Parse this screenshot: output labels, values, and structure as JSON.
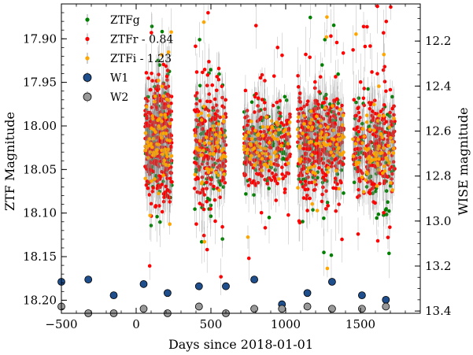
{
  "chart_data": {
    "type": "scatter",
    "title": "",
    "xlabel": "Days since 2018-01-01",
    "ylabel_left": "ZTF Magnitude",
    "ylabel_right": "WISE magnitude",
    "xlim": [
      -500,
      1900
    ],
    "ylim_left": [
      18.215,
      17.86
    ],
    "ylim_right": [
      13.41,
      12.035
    ],
    "grid": false,
    "legend_position": "top-left",
    "x_ticks": [
      -500,
      0,
      500,
      1000,
      1500
    ],
    "y_ticks_left": [
      17.9,
      17.95,
      18.0,
      18.05,
      18.1,
      18.15,
      18.2
    ],
    "y_ticks_right": [
      12.2,
      12.4,
      12.6,
      12.8,
      13.0,
      13.2,
      13.4
    ],
    "x_tick_labels": [
      "−500",
      "0",
      "500",
      "1000",
      "1500"
    ],
    "y_tick_labels_left": [
      "17.90",
      "17.95",
      "18.00",
      "18.05",
      "18.10",
      "18.15",
      "18.20"
    ],
    "y_tick_labels_right": [
      "12.2",
      "12.4",
      "12.6",
      "12.8",
      "13.0",
      "13.2",
      "13.4"
    ],
    "seasons": [
      {
        "start": 60,
        "end": 240,
        "center": 18.015,
        "spread": 0.035
      },
      {
        "start": 390,
        "end": 600,
        "center": 18.025,
        "spread": 0.035
      },
      {
        "start": 720,
        "end": 1030,
        "center": 18.02,
        "spread": 0.025
      },
      {
        "start": 1080,
        "end": 1390,
        "center": 18.02,
        "spread": 0.03
      },
      {
        "start": 1450,
        "end": 1730,
        "center": 18.025,
        "spread": 0.03
      }
    ],
    "series": [
      {
        "name": "ZTFg",
        "color": "#008000",
        "marker": "dot",
        "axis": "left",
        "points_per_season": [
          110,
          90,
          90,
          110,
          100
        ]
      },
      {
        "name": "ZTFr - 0.84",
        "color": "#ff0000",
        "marker": "dot",
        "axis": "left",
        "points_per_season": [
          320,
          200,
          220,
          320,
          230
        ]
      },
      {
        "name": "ZTFi - 1.23",
        "color": "#ffa500",
        "marker": "dot",
        "axis": "left",
        "points_per_season": [
          80,
          60,
          70,
          80,
          70
        ]
      },
      {
        "name": "W1",
        "color": "#1f4e8c",
        "marker": "circle",
        "axis": "right",
        "x": [
          -500,
          -320,
          -150,
          50,
          210,
          420,
          600,
          790,
          975,
          1145,
          1310,
          1510,
          1670
        ],
        "y": [
          13.27,
          13.26,
          13.33,
          13.28,
          13.32,
          13.29,
          13.29,
          13.26,
          13.37,
          13.32,
          13.27,
          13.33,
          13.35
        ]
      },
      {
        "name": "W2",
        "color": "#999999",
        "marker": "circle",
        "axis": "right",
        "x": [
          -500,
          -320,
          -150,
          50,
          210,
          420,
          600,
          790,
          975,
          1145,
          1310,
          1510,
          1670
        ],
        "y": [
          13.38,
          13.41,
          13.41,
          13.39,
          13.41,
          13.38,
          13.41,
          13.39,
          13.39,
          13.38,
          13.39,
          13.39,
          13.38
        ]
      }
    ]
  }
}
